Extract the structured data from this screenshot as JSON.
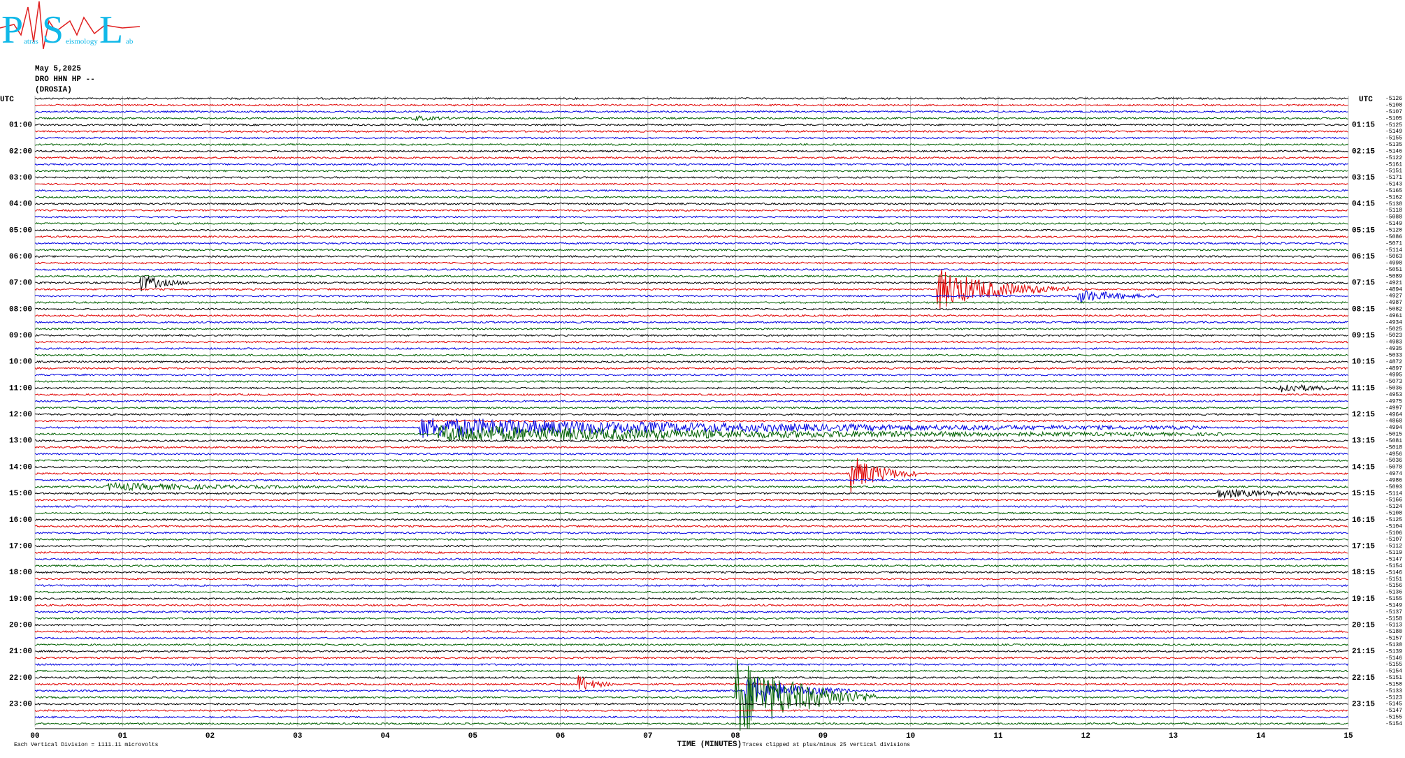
{
  "logo": {
    "letters": [
      "P",
      "S",
      "L"
    ],
    "words": [
      "atras",
      "eismology",
      "ab"
    ]
  },
  "header": {
    "date": "May 5,2025",
    "station": "DRO HHN HP --",
    "site": "(DROSIA)"
  },
  "axis": {
    "utc_left": "UTC",
    "utc_right": "UTC",
    "left_labels": [
      "01:00",
      "02:00",
      "03:00",
      "04:00",
      "05:00",
      "06:00",
      "07:00",
      "08:00",
      "09:00",
      "10:00",
      "11:00",
      "12:00",
      "13:00",
      "14:00",
      "15:00",
      "16:00",
      "17:00",
      "18:00",
      "19:00",
      "20:00",
      "21:00",
      "22:00",
      "23:00"
    ],
    "right_labels": [
      "01:15",
      "02:15",
      "03:15",
      "04:15",
      "05:15",
      "06:15",
      "07:15",
      "08:15",
      "09:15",
      "10:15",
      "11:15",
      "12:15",
      "13:15",
      "14:15",
      "15:15",
      "16:15",
      "17:15",
      "18:15",
      "19:15",
      "20:15",
      "21:15",
      "22:15",
      "23:15"
    ],
    "minutes": [
      "00",
      "01",
      "02",
      "03",
      "04",
      "05",
      "06",
      "07",
      "08",
      "09",
      "10",
      "11",
      "12",
      "13",
      "14",
      "15"
    ],
    "x_title": "TIME (MINUTES)"
  },
  "footer": {
    "scale": "Each Vertical Division = 1111.11 microvolts",
    "clip": "Traces clipped at plus/minus 25 vertical divisions"
  },
  "offsets": [
    "-5126",
    "-5108",
    "-5107",
    "-5105",
    "-5125",
    "-5149",
    "-5155",
    "-5135",
    "-5146",
    "-5122",
    "-5161",
    "-5151",
    "-5171",
    "-5143",
    "-5165",
    "-5162",
    "-5138",
    "-5118",
    "-5088",
    "-5149",
    "-5120",
    "-5086",
    "-5071",
    "-5114",
    "-5063",
    "-4998",
    "-5051",
    "-5089",
    "-4921",
    "-4894",
    "-4927",
    "-4987",
    "-5082",
    "-4961",
    "-4934",
    "-5025",
    "-5023",
    "-4983",
    "-4935",
    "-5033",
    "-4872",
    "-4897",
    "-4995",
    "-5073",
    "-5036",
    "-4953",
    "-4975",
    "-4997",
    "-4964",
    "-4868",
    "-4994",
    "-5015",
    "-5081",
    "-5018",
    "-4956",
    "-5036",
    "-5078",
    "-4974",
    "-4986",
    "-5093",
    "-5114",
    "-5166",
    "-5124",
    "-5108",
    "-5125",
    "-5104",
    "-5106",
    "-5107",
    "-5112",
    "-5119",
    "-5147",
    "-5154",
    "-5146",
    "-5151",
    "-5156",
    "-5136",
    "-5155",
    "-5149",
    "-5137",
    "-5158",
    "-5113",
    "-5180",
    "-5157",
    "-5130",
    "-5139",
    "-5146",
    "-5155",
    "-5154",
    "-5151",
    "-5150",
    "-5133",
    "-5123",
    "-5145",
    "-5147",
    "-5155",
    "-5154"
  ]
}
